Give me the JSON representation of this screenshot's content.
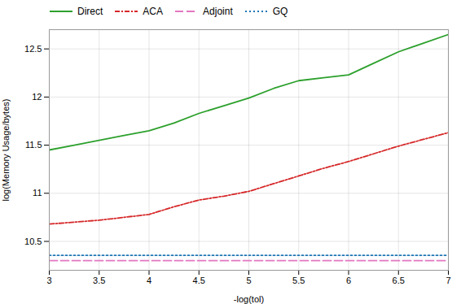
{
  "chart_data": {
    "type": "line",
    "xlabel": "-log(tol)",
    "ylabel": "log(Memory Usage/bytes)",
    "x": [
      3.0,
      3.25,
      3.5,
      3.75,
      4.0,
      4.25,
      4.5,
      4.75,
      5.0,
      5.25,
      5.5,
      5.75,
      6.0,
      6.25,
      6.5,
      6.75,
      7.0
    ],
    "series": [
      {
        "name": "Direct",
        "color": "#2ca02c",
        "line_style": "solid",
        "values": [
          11.45,
          11.5,
          11.55,
          11.6,
          11.65,
          11.73,
          11.83,
          11.91,
          11.99,
          12.09,
          12.17,
          12.2,
          12.23,
          12.35,
          12.47,
          12.56,
          12.65
        ]
      },
      {
        "name": "ACA",
        "color": "#d62728",
        "line_style": "dashdot",
        "values": [
          10.68,
          10.7,
          10.72,
          10.75,
          10.78,
          10.86,
          10.93,
          10.97,
          11.02,
          11.1,
          11.18,
          11.26,
          11.33,
          11.41,
          11.49,
          11.56,
          11.63
        ]
      },
      {
        "name": "Adjoint",
        "color": "#e377c2",
        "line_style": "dashed",
        "values": [
          10.3,
          10.3,
          10.3,
          10.3,
          10.3,
          10.3,
          10.3,
          10.3,
          10.3,
          10.3,
          10.3,
          10.3,
          10.3,
          10.3,
          10.3,
          10.3,
          10.3
        ]
      },
      {
        "name": "GQ",
        "color": "#1f77b4",
        "line_style": "dotted",
        "values": [
          10.355,
          10.355,
          10.355,
          10.355,
          10.355,
          10.355,
          10.355,
          10.355,
          10.355,
          10.355,
          10.355,
          10.355,
          10.355,
          10.355,
          10.355,
          10.355,
          10.355
        ]
      }
    ],
    "xlim": [
      3.0,
      7.0
    ],
    "ylim": [
      10.2,
      12.7
    ],
    "xticks": [
      3.0,
      3.5,
      4.0,
      4.5,
      5.0,
      5.5,
      6.0,
      6.5,
      7.0
    ],
    "yticks": [
      10.5,
      11.0,
      11.5,
      12.0,
      12.5
    ],
    "grid": true,
    "legend": "upper left"
  }
}
